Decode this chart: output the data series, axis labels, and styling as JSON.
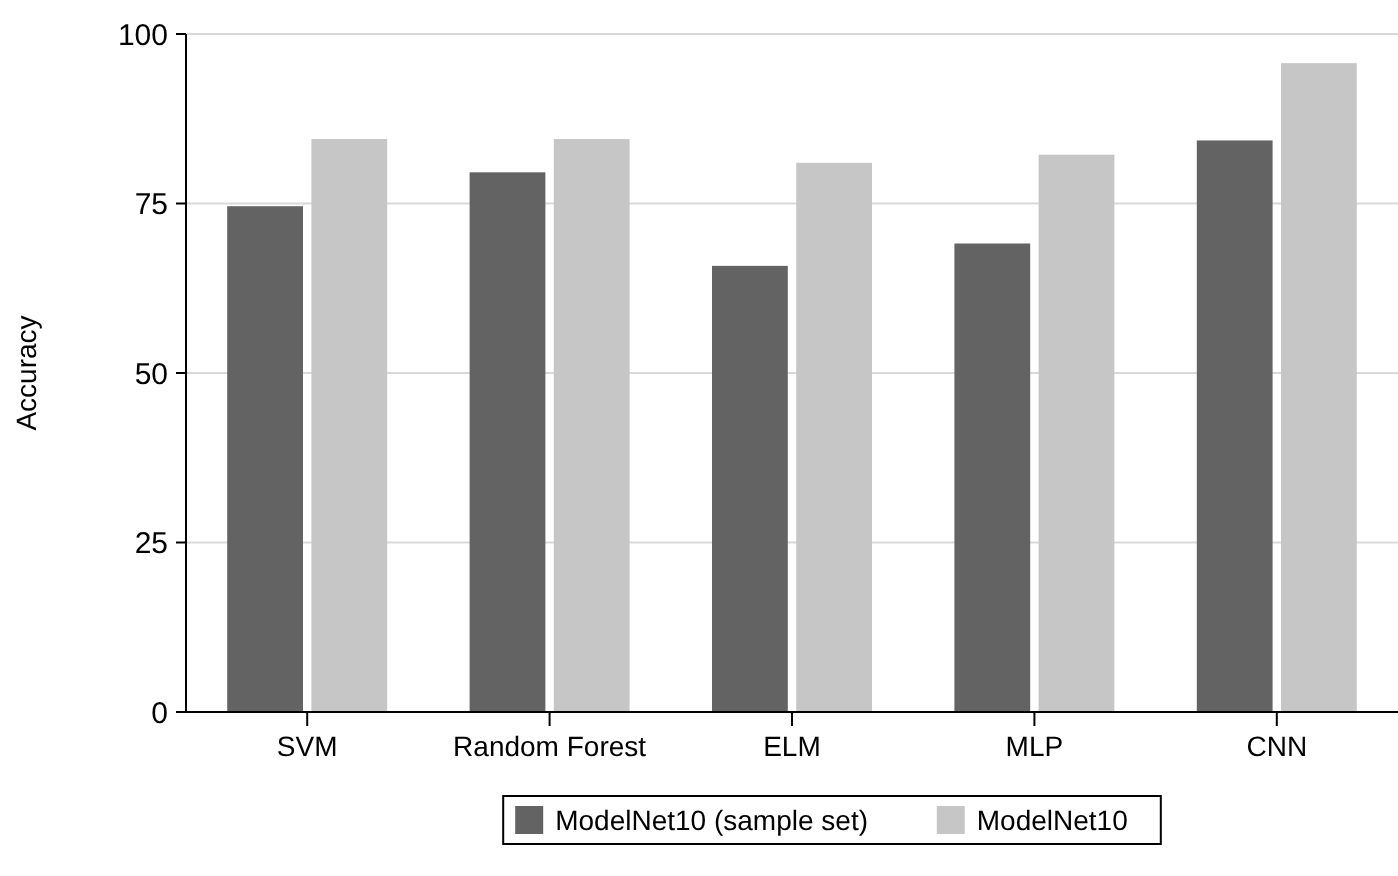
{
  "chart_data": {
    "type": "bar",
    "ylabel": "Accuracy",
    "categories": [
      "SVM",
      "Random Forest",
      "ELM",
      "MLP",
      "CNN"
    ],
    "series": [
      {
        "name": "ModelNet10 (sample set)",
        "color": "#636363",
        "values": [
          74.6,
          79.6,
          65.8,
          69.1,
          84.3
        ]
      },
      {
        "name": "ModelNet10",
        "color": "#c6c6c6",
        "values": [
          84.5,
          84.5,
          81.0,
          82.2,
          95.7
        ]
      }
    ],
    "ylim": [
      0,
      100
    ],
    "yticks": [
      0,
      25,
      50,
      75,
      100
    ],
    "grid": "y",
    "legend": "bottom"
  }
}
